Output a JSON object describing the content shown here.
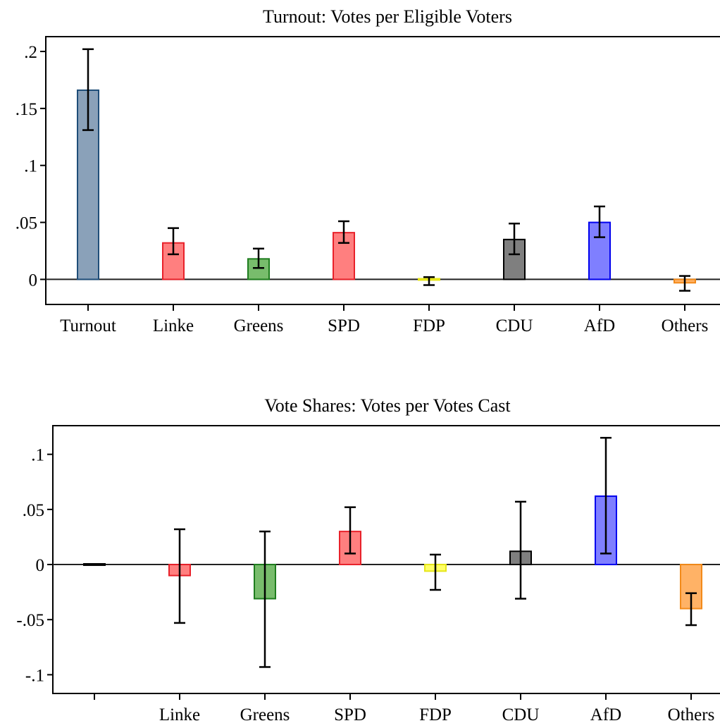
{
  "chart_data": [
    {
      "type": "bar",
      "title": "Turnout: Votes per Eligible Voters",
      "xlabel": "",
      "ylabel": "",
      "ylim": [
        -0.022,
        0.213
      ],
      "yticks": [
        {
          "value": 0.2,
          "label": ".2"
        },
        {
          "value": 0.15,
          "label": ".15"
        },
        {
          "value": 0.1,
          "label": ".1"
        },
        {
          "value": 0.05,
          "label": ".05"
        },
        {
          "value": 0,
          "label": "0"
        }
      ],
      "grid": false,
      "zero_line": true,
      "categories": [
        "Turnout",
        "Linke",
        "Greens",
        "SPD",
        "FDP",
        "CDU",
        "AfD",
        "Others"
      ],
      "bars": [
        {
          "label": "Turnout",
          "value": 0.166,
          "ci_low": 0.131,
          "ci_high": 0.202,
          "fill": "#8aa1b9",
          "stroke": "#1f4e79"
        },
        {
          "label": "Linke",
          "value": 0.032,
          "ci_low": 0.022,
          "ci_high": 0.045,
          "fill": "#ff7f7f",
          "stroke": "#e8212a"
        },
        {
          "label": "Greens",
          "value": 0.018,
          "ci_low": 0.01,
          "ci_high": 0.027,
          "fill": "#78bc6c",
          "stroke": "#1e7d1e"
        },
        {
          "label": "SPD",
          "value": 0.041,
          "ci_low": 0.032,
          "ci_high": 0.051,
          "fill": "#ff7f7f",
          "stroke": "#e8212a"
        },
        {
          "label": "FDP",
          "value": -0.001,
          "ci_low": -0.005,
          "ci_high": 0.002,
          "fill": "#ffff66",
          "stroke": "#e6e61a"
        },
        {
          "label": "CDU",
          "value": 0.035,
          "ci_low": 0.022,
          "ci_high": 0.049,
          "fill": "#7f7f7f",
          "stroke": "#000000"
        },
        {
          "label": "AfD",
          "value": 0.05,
          "ci_low": 0.037,
          "ci_high": 0.064,
          "fill": "#7f7fff",
          "stroke": "#0000ee"
        },
        {
          "label": "Others",
          "value": -0.003,
          "ci_low": -0.01,
          "ci_high": 0.003,
          "fill": "#ffb266",
          "stroke": "#f28a1a"
        }
      ]
    },
    {
      "type": "bar",
      "title": "Vote Shares: Votes per Votes Cast",
      "xlabel": "",
      "ylabel": "",
      "ylim": [
        -0.117,
        0.126
      ],
      "yticks": [
        {
          "value": 0.1,
          "label": ".1"
        },
        {
          "value": 0.05,
          "label": ".05"
        },
        {
          "value": 0,
          "label": "0"
        },
        {
          "value": -0.05,
          "label": "-.05"
        },
        {
          "value": -0.1,
          "label": "-.1"
        }
      ],
      "grid": false,
      "zero_line": true,
      "categories": [
        "",
        "Linke",
        "Greens",
        "SPD",
        "FDP",
        "CDU",
        "AfD",
        "Others"
      ],
      "bars": [
        {
          "label": "",
          "value": 0,
          "fill": "#8aa1b9",
          "stroke": "#000000"
        },
        {
          "label": "Linke",
          "value": -0.01,
          "ci_low": -0.053,
          "ci_high": 0.032,
          "fill": "#ff7f7f",
          "stroke": "#e8212a"
        },
        {
          "label": "Greens",
          "value": -0.031,
          "ci_low": -0.093,
          "ci_high": 0.03,
          "fill": "#78bc6c",
          "stroke": "#1e7d1e"
        },
        {
          "label": "SPD",
          "value": 0.03,
          "ci_low": 0.01,
          "ci_high": 0.052,
          "fill": "#ff7f7f",
          "stroke": "#e8212a"
        },
        {
          "label": "FDP",
          "value": -0.006,
          "ci_low": -0.023,
          "ci_high": 0.009,
          "fill": "#ffff66",
          "stroke": "#e6e61a"
        },
        {
          "label": "CDU",
          "value": 0.012,
          "ci_low": -0.031,
          "ci_high": 0.057,
          "fill": "#7f7f7f",
          "stroke": "#000000"
        },
        {
          "label": "AfD",
          "value": 0.062,
          "ci_low": 0.01,
          "ci_high": 0.115,
          "fill": "#7f7fff",
          "stroke": "#0000ee"
        },
        {
          "label": "Others",
          "value": -0.04,
          "ci_low": -0.055,
          "ci_high": -0.026,
          "fill": "#ffb266",
          "stroke": "#f28a1a"
        }
      ]
    }
  ]
}
